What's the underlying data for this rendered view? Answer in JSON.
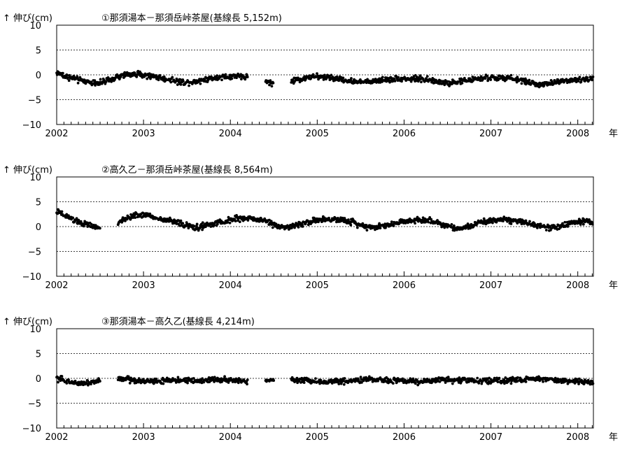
{
  "chart_data": [
    {
      "type": "scatter",
      "title": "①那須湯本－那須岳峠茶屋(基線長 5,152m)",
      "ylabel": "↑ 伸び(cm)",
      "xlabel": "年",
      "xlim": [
        2002,
        2008.18
      ],
      "ylim": [
        -10,
        10
      ],
      "yticks": [
        10,
        5,
        0,
        -5,
        -10
      ],
      "xticks": [
        2002,
        2003,
        2004,
        2005,
        2006,
        2007,
        2008
      ],
      "grid": "dotted horizontal lines at ±5 and 0",
      "series": [
        {
          "x": [
            2002.0,
            2002.1,
            2002.2,
            2002.3,
            2002.4,
            2002.5,
            2002.6,
            2002.7,
            2002.8,
            2002.9,
            2003.0,
            2003.1,
            2003.2,
            2003.3,
            2003.4,
            2003.5,
            2003.6,
            2003.7,
            2003.8,
            2003.9,
            2004.0,
            2004.1,
            2004.2,
            2004.3,
            2004.4,
            2004.5,
            2004.6,
            2004.7,
            2004.8,
            2004.9,
            2005.0,
            2005.1,
            2005.2,
            2005.3,
            2005.4,
            2005.5,
            2005.6,
            2005.7,
            2005.8,
            2005.9,
            2006.0,
            2006.1,
            2006.2,
            2006.3,
            2006.4,
            2006.5,
            2006.6,
            2006.7,
            2006.8,
            2006.9,
            2007.0,
            2007.1,
            2007.2,
            2007.3,
            2007.4,
            2007.5,
            2007.6,
            2007.7,
            2007.8,
            2007.9,
            2008.0,
            2008.1,
            2008.18
          ],
          "y": [
            0.5,
            -0.3,
            -0.8,
            -1.2,
            -1.5,
            -1.6,
            -1.2,
            -0.5,
            0.0,
            0.2,
            0.0,
            -0.3,
            -0.6,
            -1.0,
            -1.4,
            -1.5,
            -1.3,
            -1.0,
            -0.6,
            -0.4,
            -0.4,
            -0.3,
            -0.4,
            null,
            -1.2,
            -1.8,
            null,
            -1.3,
            -0.9,
            -0.5,
            -0.4,
            -0.5,
            -0.7,
            -1.0,
            -1.3,
            -1.5,
            -1.4,
            -1.1,
            -0.9,
            -0.8,
            -0.8,
            -0.8,
            -0.8,
            -1.1,
            -1.5,
            -1.6,
            -1.5,
            -1.2,
            -0.9,
            -0.7,
            -0.6,
            -0.6,
            -0.7,
            -0.9,
            -1.3,
            -1.8,
            -2.0,
            -1.7,
            -1.3,
            -1.0,
            -1.0,
            -0.9,
            -0.8
          ]
        }
      ]
    },
    {
      "type": "scatter",
      "title": "②高久乙－那須岳峠茶屋(基線長 8,564m)",
      "ylabel": "↑ 伸び(cm)",
      "xlabel": "年",
      "xlim": [
        2002,
        2008.18
      ],
      "ylim": [
        -10,
        10
      ],
      "yticks": [
        10,
        5,
        0,
        -5,
        -10
      ],
      "xticks": [
        2002,
        2003,
        2004,
        2005,
        2006,
        2007,
        2008
      ],
      "grid": "dotted horizontal lines at ±5 and 0",
      "series": [
        {
          "x": [
            2002.0,
            2002.1,
            2002.2,
            2002.3,
            2002.4,
            2002.5,
            2002.6,
            2002.7,
            2002.8,
            2002.9,
            2003.0,
            2003.1,
            2003.2,
            2003.3,
            2003.4,
            2003.5,
            2003.6,
            2003.7,
            2003.8,
            2003.9,
            2004.0,
            2004.1,
            2004.2,
            2004.3,
            2004.4,
            2004.5,
            2004.6,
            2004.7,
            2004.8,
            2004.9,
            2005.0,
            2005.1,
            2005.2,
            2005.3,
            2005.4,
            2005.5,
            2005.6,
            2005.7,
            2005.8,
            2005.9,
            2006.0,
            2006.1,
            2006.2,
            2006.3,
            2006.4,
            2006.5,
            2006.6,
            2006.7,
            2006.8,
            2006.9,
            2007.0,
            2007.1,
            2007.2,
            2007.3,
            2007.4,
            2007.5,
            2007.6,
            2007.7,
            2007.8,
            2007.9,
            2008.0,
            2008.1,
            2008.18
          ],
          "y": [
            3.0,
            2.2,
            1.3,
            0.6,
            0.1,
            -0.2,
            null,
            0.6,
            1.6,
            2.3,
            2.4,
            2.0,
            1.5,
            1.2,
            0.8,
            0.2,
            -0.2,
            0.1,
            0.5,
            0.9,
            1.3,
            1.7,
            1.7,
            1.5,
            1.2,
            0.5,
            -0.1,
            0.0,
            0.4,
            1.0,
            1.2,
            1.4,
            1.4,
            1.3,
            1.0,
            0.3,
            -0.1,
            -0.1,
            0.2,
            0.7,
            1.1,
            1.3,
            1.3,
            1.2,
            0.8,
            0.2,
            -0.3,
            -0.2,
            0.3,
            0.9,
            1.3,
            1.4,
            1.4,
            1.2,
            0.9,
            0.4,
            0.0,
            -0.2,
            0.1,
            0.6,
            1.0,
            1.1,
            1.0
          ]
        }
      ]
    },
    {
      "type": "scatter",
      "title": "③那須湯本－高久乙(基線長 4,214m)",
      "ylabel": "↑ 伸び(cm)",
      "xlabel": "年",
      "xlim": [
        2002,
        2008.18
      ],
      "ylim": [
        -10,
        10
      ],
      "yticks": [
        10,
        5,
        0,
        -5,
        -10
      ],
      "xticks": [
        2002,
        2003,
        2004,
        2005,
        2006,
        2007,
        2008
      ],
      "grid": "dotted horizontal lines at ±5 and 0",
      "series": [
        {
          "x": [
            2002.0,
            2002.1,
            2002.2,
            2002.3,
            2002.4,
            2002.5,
            2002.6,
            2002.7,
            2002.8,
            2002.9,
            2003.0,
            2003.1,
            2003.2,
            2003.3,
            2003.4,
            2003.5,
            2003.6,
            2003.7,
            2003.8,
            2003.9,
            2004.0,
            2004.1,
            2004.2,
            2004.3,
            2004.4,
            2004.5,
            2004.6,
            2004.7,
            2004.8,
            2004.9,
            2005.0,
            2005.1,
            2005.2,
            2005.3,
            2005.4,
            2005.5,
            2005.6,
            2005.7,
            2005.8,
            2005.9,
            2006.0,
            2006.1,
            2006.2,
            2006.3,
            2006.4,
            2006.5,
            2006.6,
            2006.7,
            2006.8,
            2006.9,
            2007.0,
            2007.1,
            2007.2,
            2007.3,
            2007.4,
            2007.5,
            2007.6,
            2007.7,
            2007.8,
            2007.9,
            2008.0,
            2008.1,
            2008.18
          ],
          "y": [
            0.0,
            -0.5,
            -0.9,
            -1.0,
            -0.8,
            -0.5,
            null,
            0.0,
            -0.2,
            -0.4,
            -0.5,
            -0.6,
            -0.6,
            -0.5,
            -0.4,
            -0.4,
            -0.5,
            -0.4,
            -0.3,
            -0.3,
            -0.4,
            -0.5,
            -0.6,
            null,
            -0.3,
            -0.3,
            null,
            -0.3,
            -0.4,
            -0.5,
            -0.6,
            -0.8,
            -0.7,
            -0.5,
            -0.4,
            -0.3,
            -0.2,
            -0.3,
            -0.4,
            -0.5,
            -0.6,
            -0.6,
            -0.6,
            -0.5,
            -0.4,
            -0.3,
            -0.3,
            -0.3,
            -0.4,
            -0.5,
            -0.5,
            -0.5,
            -0.4,
            -0.3,
            -0.2,
            -0.1,
            -0.1,
            -0.2,
            -0.4,
            -0.5,
            -0.6,
            -0.8,
            -0.9
          ]
        }
      ]
    }
  ]
}
